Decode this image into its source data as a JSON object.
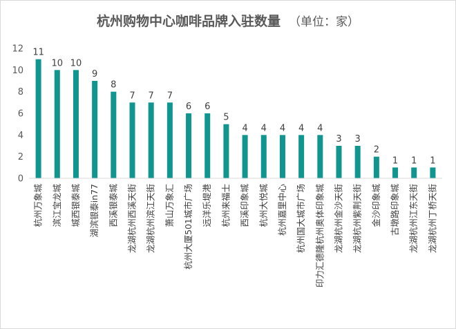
{
  "title": "杭州购物中心咖啡品牌入驻数量",
  "unit": "（单位：家）",
  "colors": {
    "bar": "#11958f",
    "axis": "#d9d9d9",
    "text": "#404040"
  },
  "chart_data": {
    "type": "bar",
    "title": "杭州购物中心咖啡品牌入驻数量",
    "subtitle": "（单位：家）",
    "xlabel": "",
    "ylabel": "",
    "ylim": [
      0,
      12
    ],
    "yticks": [
      0,
      2,
      4,
      6,
      8,
      10,
      12
    ],
    "grid": false,
    "categories": [
      "杭州万象城",
      "滨江宝龙城",
      "城西银泰城",
      "湖滨银泰in77",
      "西溪银泰城",
      "龙湖杭州西溪天街",
      "龙湖杭州滨江天街",
      "萧山万象汇",
      "杭州大厦501城市广场",
      "远洋乐堤港",
      "杭州来福士",
      "西溪印象城",
      "杭州大悦城",
      "杭州嘉里中心",
      "杭州国大城市广场",
      "印力汇德隆杭州奥体印象城",
      "龙湖杭州金沙天街",
      "龙湖杭州紫荆天街",
      "金沙印象城",
      "古墩路印象城",
      "龙湖杭州江东天街",
      "龙湖杭州丁桥天街"
    ],
    "values": [
      11,
      10,
      10,
      9,
      8,
      7,
      7,
      7,
      6,
      6,
      5,
      4,
      4,
      4,
      4,
      4,
      3,
      3,
      2,
      1,
      1,
      1
    ]
  }
}
